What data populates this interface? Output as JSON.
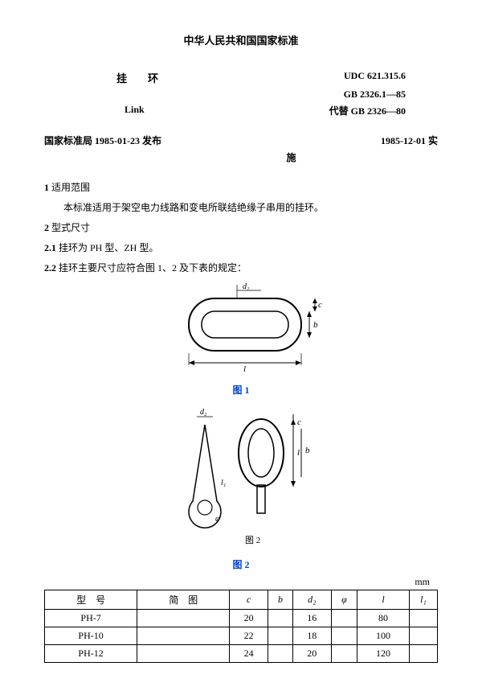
{
  "header": {
    "title": "中华人民共和国国家标准",
    "name_cn": "挂　　环",
    "udc": "UDC  621.315.6",
    "gb": "GB  2326.1—85",
    "name_en": "Link",
    "replaces": "代替 GB  2326—80",
    "issuer": "国家标准局 1985-01-23 发布",
    "effective": "1985-12-01 实",
    "shi": "施"
  },
  "sections": {
    "s1_num": "1",
    "s1_title": "适用范围",
    "s1_body": "本标准适用于架空电力线路和变电所联结绝缘子串用的挂环。",
    "s2_num": "2",
    "s2_title": "型式尺寸",
    "s21": "2.1",
    "s21_body": "挂环为 PH 型、ZH 型。",
    "s22": "2.2",
    "s22_body": "挂环主要尺寸应符合图 1、2 及下表的规定："
  },
  "figures": {
    "fig1": "图 1",
    "fig2": "图 2",
    "fig2_cn": "图 2"
  },
  "table": {
    "unit": "mm",
    "headers": [
      "型　号",
      "简　图",
      "c",
      "b",
      "d₂",
      "φ",
      "l",
      "l₁"
    ],
    "rows": [
      [
        "PH-7",
        "",
        "20",
        "",
        "16",
        "",
        "80",
        ""
      ],
      [
        "PH-10",
        "",
        "22",
        "",
        "18",
        "",
        "100",
        ""
      ],
      [
        "PH-12",
        "",
        "24",
        "",
        "20",
        "",
        "120",
        ""
      ]
    ]
  }
}
